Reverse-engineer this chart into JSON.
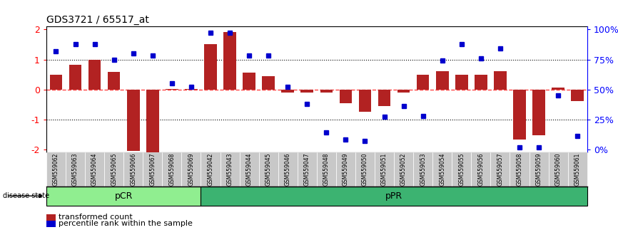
{
  "title": "GDS3721 / 65517_at",
  "samples": [
    "GSM559062",
    "GSM559063",
    "GSM559064",
    "GSM559065",
    "GSM559066",
    "GSM559067",
    "GSM559068",
    "GSM559069",
    "GSM559042",
    "GSM559043",
    "GSM559044",
    "GSM559045",
    "GSM559046",
    "GSM559047",
    "GSM559048",
    "GSM559049",
    "GSM559050",
    "GSM559051",
    "GSM559052",
    "GSM559053",
    "GSM559054",
    "GSM559055",
    "GSM559056",
    "GSM559057",
    "GSM559058",
    "GSM559059",
    "GSM559060",
    "GSM559061"
  ],
  "red_values": [
    0.5,
    0.82,
    1.0,
    0.58,
    -2.05,
    -2.1,
    0.02,
    0.02,
    1.5,
    1.92,
    0.55,
    0.45,
    -0.1,
    -0.1,
    -0.1,
    -0.45,
    -0.75,
    -0.55,
    -0.1,
    0.5,
    0.62,
    0.5,
    0.5,
    0.62,
    -1.68,
    -1.52,
    0.06,
    -0.38
  ],
  "blue_pct": [
    82,
    88,
    88,
    75,
    80,
    78,
    55,
    52,
    97,
    97,
    78,
    78,
    52,
    38,
    14,
    8,
    7,
    27,
    36,
    28,
    74,
    88,
    76,
    84,
    2,
    2,
    45,
    11
  ],
  "pcr_count": 8,
  "ppr_count": 20,
  "ylim": [
    -2.1,
    2.1
  ],
  "yticks": [
    -2,
    -1,
    0,
    1,
    2
  ],
  "bar_color": "#B22222",
  "dot_color": "#0000CD",
  "redline_color": "#FF4444",
  "pcr_color": "#90EE90",
  "ppr_color": "#3CB371",
  "tick_bg_color": "#C8C8C8",
  "right_yticks": [
    0,
    25,
    50,
    75,
    100
  ],
  "right_ylabels": [
    "0%",
    "25%",
    "50%",
    "75%",
    "100%"
  ]
}
